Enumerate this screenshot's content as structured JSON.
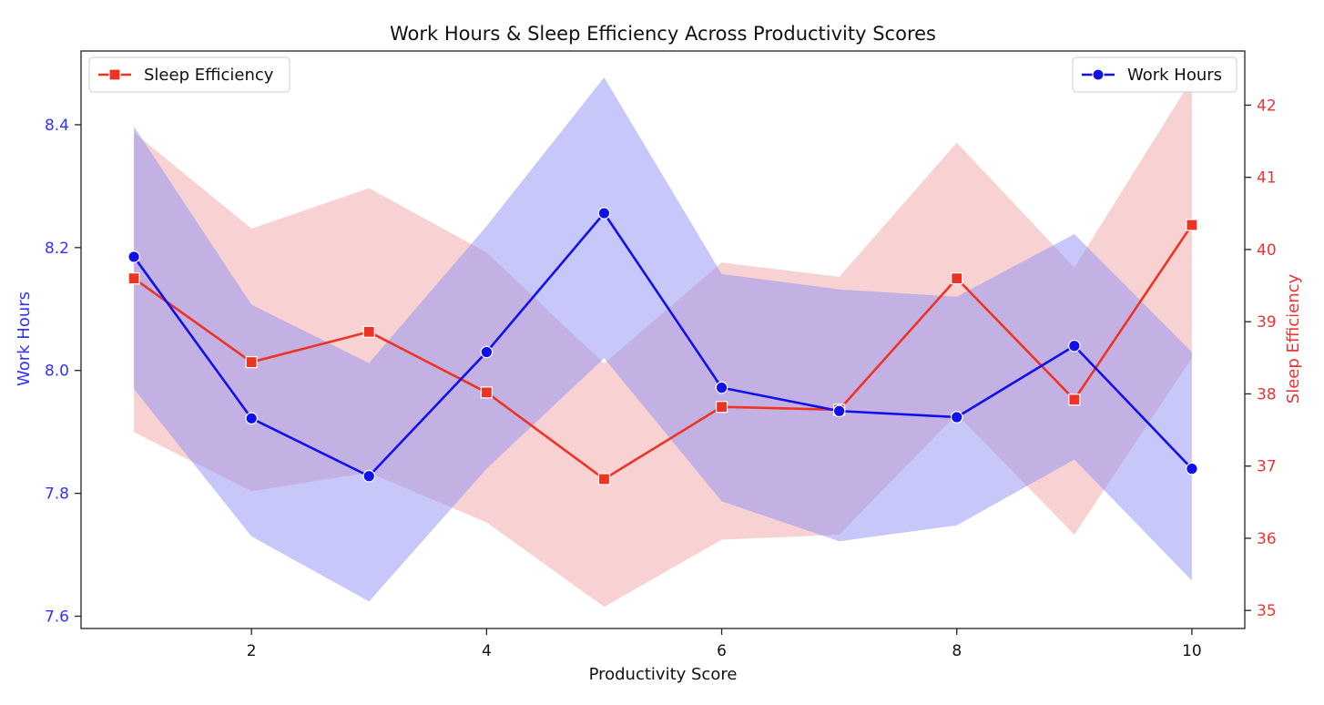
{
  "chart_data": {
    "type": "line",
    "title": "Work Hours & Sleep Efficiency Across Productivity Scores",
    "xlabel": "Productivity Score",
    "x": [
      1,
      2,
      3,
      4,
      5,
      6,
      7,
      8,
      9,
      10
    ],
    "xlim": [
      0.55,
      10.45
    ],
    "xticks": [
      2,
      4,
      6,
      8,
      10
    ],
    "y_left": {
      "label": "Work Hours",
      "color": "#3333ff",
      "ylim": [
        7.58,
        8.52
      ],
      "ticks": [
        "7.6",
        "7.8",
        "8.0",
        "8.2",
        "8.4"
      ]
    },
    "y_right": {
      "label": "Sleep Efficiency",
      "color": "#ee3333",
      "ylim": [
        34.75,
        42.75
      ],
      "ticks": [
        "35",
        "36",
        "37",
        "38",
        "39",
        "40",
        "41",
        "42"
      ]
    },
    "series": [
      {
        "name": "Work Hours",
        "axis": "left",
        "color": "#1010ee",
        "band_color": "#8f8ff5",
        "marker": "circle",
        "values": [
          8.185,
          7.922,
          7.828,
          8.03,
          8.256,
          7.972,
          7.934,
          7.924,
          8.04,
          7.84
        ],
        "ci_low": [
          7.97,
          7.73,
          7.624,
          7.84,
          8.02,
          7.787,
          7.722,
          7.748,
          7.855,
          7.658
        ],
        "ci_high": [
          8.397,
          8.107,
          8.012,
          8.235,
          8.477,
          8.157,
          8.132,
          8.12,
          8.222,
          8.03
        ]
      },
      {
        "name": "Sleep Efficiency",
        "axis": "right",
        "color": "#ee3322",
        "band_color": "#f2a5a5",
        "marker": "square",
        "values": [
          39.6,
          38.44,
          38.86,
          38.02,
          36.82,
          37.82,
          37.78,
          39.6,
          37.92,
          40.34
        ],
        "ci_low": [
          37.47,
          36.65,
          36.91,
          36.22,
          35.05,
          35.98,
          36.05,
          37.72,
          36.05,
          38.5
        ],
        "ci_high": [
          41.62,
          40.29,
          40.85,
          39.96,
          38.42,
          39.82,
          39.62,
          41.48,
          39.75,
          42.36
        ]
      }
    ],
    "legends": [
      {
        "placement": "upper-left",
        "series": "Sleep Efficiency"
      },
      {
        "placement": "upper-right",
        "series": "Work Hours"
      }
    ],
    "grid": false
  }
}
